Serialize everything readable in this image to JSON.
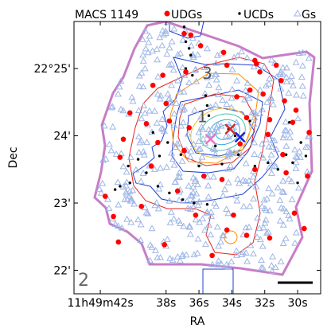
{
  "chart_data": {
    "type": "scatter",
    "title": "MACS 1149",
    "xlabel": "RA",
    "ylabel": "Dec",
    "panel_label": "2",
    "x_ticks": [
      {
        "label": "11h49m42s",
        "value": 42
      },
      {
        "label": "38s",
        "value": 38
      },
      {
        "label": "36s",
        "value": 36
      },
      {
        "label": "34s",
        "value": 34
      },
      {
        "label": "32s",
        "value": 32
      },
      {
        "label": "30s",
        "value": 30
      }
    ],
    "y_ticks": [
      {
        "label": "22°25'",
        "value": 25
      },
      {
        "label": "24'",
        "value": 24
      },
      {
        "label": "23'",
        "value": 23
      },
      {
        "label": "22'",
        "value": 22
      }
    ],
    "xlim": [
      43.6,
      28.6
    ],
    "ylim": [
      21.65,
      25.7
    ],
    "legend": [
      {
        "name": "UDGs",
        "marker": "circle",
        "color": "#ff0000"
      },
      {
        "name": "UCDs",
        "marker": "dot",
        "color": "#000000"
      },
      {
        "name": "Gs",
        "marker": "triangle",
        "color": "#9fb6e6"
      }
    ],
    "region_labels": [
      {
        "text": "1",
        "x": 35.8,
        "y": 24.2
      },
      {
        "text": "3",
        "x": 35.5,
        "y": 24.85
      }
    ],
    "crosses": [
      {
        "x": 35.3,
        "y": 23.95,
        "color": "#e377c2"
      },
      {
        "x": 34.1,
        "y": 24.1,
        "color": "#d62728"
      },
      {
        "x": 33.5,
        "y": 23.98,
        "color": "#1f1fd6"
      }
    ],
    "colors": {
      "footprint": "#c77dc7",
      "udg": "#ff0000",
      "ucd": "#000000",
      "galaxy": "#9fb6e6",
      "blue_contour": "#1f3fd6",
      "red_contour": "#e8231b",
      "orange_contour": "#ff8c00"
    },
    "series": [
      {
        "name": "UDGs",
        "points": [
          [
            36.9,
            25.52
          ],
          [
            36.5,
            25.5
          ],
          [
            34.5,
            25.24
          ],
          [
            32.6,
            25.12
          ],
          [
            32.5,
            25.07
          ],
          [
            31.3,
            25.05
          ],
          [
            38.8,
            24.75
          ],
          [
            32.9,
            24.68
          ],
          [
            32.1,
            24.62
          ],
          [
            30.8,
            24.52
          ],
          [
            40.2,
            24.34
          ],
          [
            39.2,
            24.18
          ],
          [
            37.8,
            24.22
          ],
          [
            36.6,
            24.12
          ],
          [
            33.1,
            24.27
          ],
          [
            31.7,
            24.24
          ],
          [
            30.3,
            24.2
          ],
          [
            29.3,
            24.05
          ],
          [
            33.5,
            23.88
          ],
          [
            36.9,
            23.78
          ],
          [
            40.8,
            23.68
          ],
          [
            38.9,
            23.55
          ],
          [
            35.7,
            23.4
          ],
          [
            34.6,
            23.35
          ],
          [
            32.6,
            23.5
          ],
          [
            30.7,
            23.45
          ],
          [
            29.4,
            23.4
          ],
          [
            41.7,
            23.1
          ],
          [
            39.5,
            22.95
          ],
          [
            36.2,
            22.82
          ],
          [
            34.3,
            22.6
          ],
          [
            33.1,
            22.52
          ],
          [
            31.7,
            22.48
          ],
          [
            29.6,
            22.62
          ],
          [
            38.1,
            22.38
          ],
          [
            35.2,
            22.22
          ],
          [
            40.9,
            22.42
          ],
          [
            36.8,
            24.95
          ],
          [
            31.0,
            24.82
          ],
          [
            30.1,
            24.38
          ],
          [
            38.2,
            24.9
          ],
          [
            33.7,
            24.58
          ],
          [
            34.3,
            25.05
          ],
          [
            31.8,
            24.02
          ],
          [
            38.0,
            24.48
          ],
          [
            40.6,
            23.95
          ],
          [
            33.9,
            22.82
          ],
          [
            30.2,
            22.85
          ],
          [
            37.3,
            23.18
          ],
          [
            32.3,
            24.95
          ],
          [
            35.9,
            25.34
          ],
          [
            38.5,
            23.9
          ],
          [
            41.2,
            22.8
          ],
          [
            30.9,
            23.72
          ]
        ]
      },
      {
        "name": "UCDs",
        "points": [
          [
            36.8,
            25.4
          ],
          [
            36.6,
            25.3
          ],
          [
            36.5,
            25.2
          ],
          [
            36.8,
            25.0
          ],
          [
            35.6,
            24.6
          ],
          [
            35.5,
            24.45
          ],
          [
            35.4,
            24.3
          ],
          [
            37.9,
            23.9
          ],
          [
            38.4,
            23.7
          ],
          [
            39.2,
            23.45
          ],
          [
            40.2,
            23.3
          ],
          [
            40.8,
            23.25
          ],
          [
            41.1,
            23.2
          ],
          [
            38.5,
            23.25
          ],
          [
            37.8,
            23.15
          ],
          [
            37.0,
            23.05
          ],
          [
            36.3,
            23.0
          ],
          [
            35.5,
            22.98
          ],
          [
            32.6,
            23.55
          ],
          [
            31.8,
            23.6
          ],
          [
            30.7,
            23.72
          ],
          [
            30.3,
            23.6
          ],
          [
            29.8,
            23.9
          ],
          [
            29.5,
            23.7
          ],
          [
            30.5,
            24.2
          ],
          [
            34.2,
            24.1
          ],
          [
            33.8,
            24.0
          ],
          [
            32.9,
            24.22
          ],
          [
            35.0,
            23.85
          ],
          [
            36.0,
            23.55
          ],
          [
            37.1,
            23.72
          ],
          [
            38.8,
            24.05
          ],
          [
            40.3,
            23.55
          ],
          [
            39.7,
            23.65
          ],
          [
            36.9,
            25.62
          ],
          [
            36.4,
            24.9
          ],
          [
            34.6,
            23.58
          ],
          [
            33.6,
            23.72
          ],
          [
            31.2,
            23.5
          ],
          [
            30.0,
            23.3
          ]
        ]
      },
      {
        "name": "Gs",
        "count": 480,
        "seed": 1149
      }
    ]
  }
}
